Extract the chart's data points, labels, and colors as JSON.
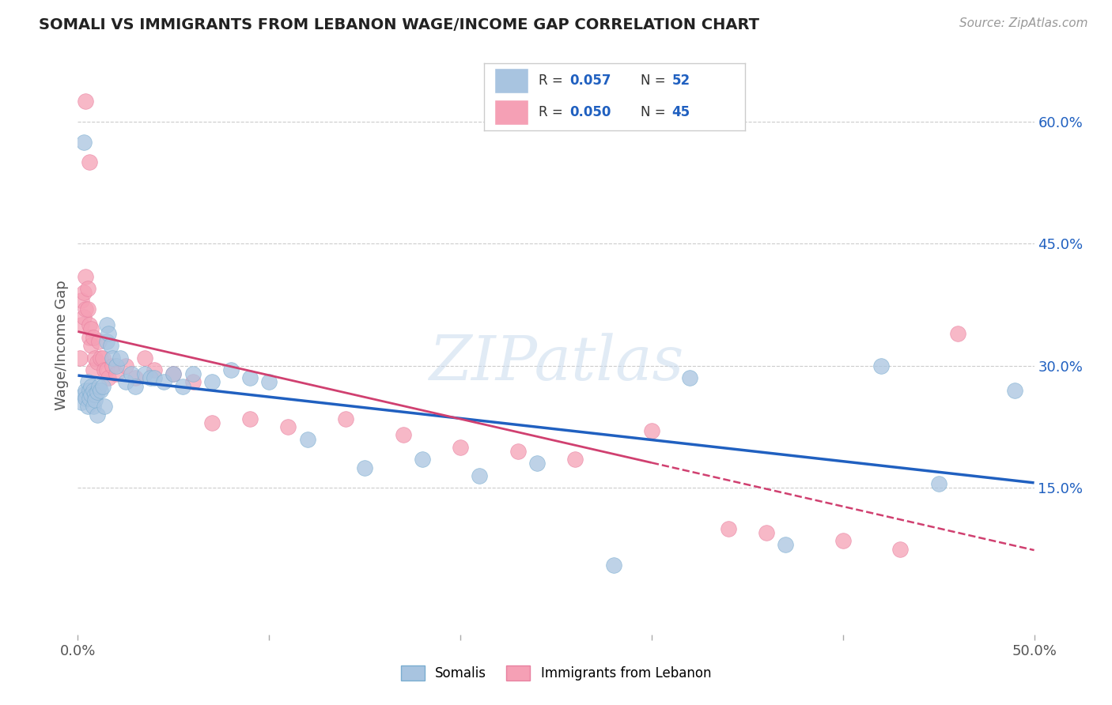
{
  "title": "SOMALI VS IMMIGRANTS FROM LEBANON WAGE/INCOME GAP CORRELATION CHART",
  "source": "Source: ZipAtlas.com",
  "ylabel": "Wage/Income Gap",
  "right_yticks": [
    "60.0%",
    "45.0%",
    "30.0%",
    "15.0%"
  ],
  "right_ytick_vals": [
    0.6,
    0.45,
    0.3,
    0.15
  ],
  "xlim": [
    0.0,
    0.5
  ],
  "ylim": [
    -0.03,
    0.68
  ],
  "legend_r1": "0.057",
  "legend_n1": "52",
  "legend_r2": "0.050",
  "legend_n2": "45",
  "somali_color": "#a8c4e0",
  "lebanon_color": "#f5a0b5",
  "somali_edge_color": "#7aadd0",
  "lebanon_edge_color": "#e880a0",
  "somali_line_color": "#2060c0",
  "lebanon_line_color": "#d04070",
  "somali_x": [
    0.002,
    0.003,
    0.004,
    0.004,
    0.005,
    0.005,
    0.006,
    0.006,
    0.007,
    0.007,
    0.008,
    0.008,
    0.009,
    0.009,
    0.01,
    0.01,
    0.011,
    0.012,
    0.013,
    0.014,
    0.015,
    0.015,
    0.016,
    0.017,
    0.018,
    0.02,
    0.022,
    0.025,
    0.028,
    0.03,
    0.035,
    0.038,
    0.04,
    0.045,
    0.05,
    0.055,
    0.06,
    0.07,
    0.08,
    0.09,
    0.1,
    0.12,
    0.15,
    0.18,
    0.21,
    0.24,
    0.28,
    0.32,
    0.37,
    0.42,
    0.45,
    0.49
  ],
  "somali_y": [
    0.255,
    0.265,
    0.27,
    0.26,
    0.28,
    0.25,
    0.27,
    0.26,
    0.275,
    0.265,
    0.27,
    0.25,
    0.265,
    0.258,
    0.268,
    0.24,
    0.275,
    0.27,
    0.275,
    0.25,
    0.35,
    0.33,
    0.34,
    0.325,
    0.31,
    0.3,
    0.31,
    0.28,
    0.29,
    0.275,
    0.29,
    0.285,
    0.285,
    0.28,
    0.29,
    0.275,
    0.29,
    0.28,
    0.295,
    0.285,
    0.28,
    0.21,
    0.175,
    0.185,
    0.165,
    0.18,
    0.055,
    0.285,
    0.08,
    0.3,
    0.155,
    0.27
  ],
  "lebanon_x": [
    0.001,
    0.002,
    0.002,
    0.003,
    0.003,
    0.004,
    0.004,
    0.005,
    0.005,
    0.006,
    0.006,
    0.007,
    0.007,
    0.008,
    0.008,
    0.009,
    0.01,
    0.011,
    0.012,
    0.013,
    0.014,
    0.015,
    0.016,
    0.018,
    0.02,
    0.025,
    0.03,
    0.035,
    0.04,
    0.05,
    0.06,
    0.07,
    0.09,
    0.11,
    0.14,
    0.17,
    0.2,
    0.23,
    0.26,
    0.3,
    0.34,
    0.36,
    0.4,
    0.43,
    0.46
  ],
  "lebanon_y": [
    0.31,
    0.35,
    0.38,
    0.36,
    0.39,
    0.37,
    0.41,
    0.37,
    0.395,
    0.35,
    0.335,
    0.345,
    0.325,
    0.335,
    0.295,
    0.31,
    0.305,
    0.33,
    0.31,
    0.31,
    0.295,
    0.295,
    0.285,
    0.3,
    0.29,
    0.3,
    0.285,
    0.31,
    0.295,
    0.29,
    0.28,
    0.23,
    0.235,
    0.225,
    0.235,
    0.215,
    0.2,
    0.195,
    0.185,
    0.22,
    0.1,
    0.095,
    0.085,
    0.075,
    0.34
  ],
  "somali_outlier_x": [
    0.003
  ],
  "somali_outlier_y": [
    0.575
  ],
  "lebanon_outlier1_x": [
    0.004
  ],
  "lebanon_outlier1_y": [
    0.625
  ],
  "lebanon_outlier2_x": [
    0.006
  ],
  "lebanon_outlier2_y": [
    0.55
  ],
  "watermark_text": "ZIPatlas",
  "background_color": "#ffffff",
  "grid_color": "#cccccc"
}
